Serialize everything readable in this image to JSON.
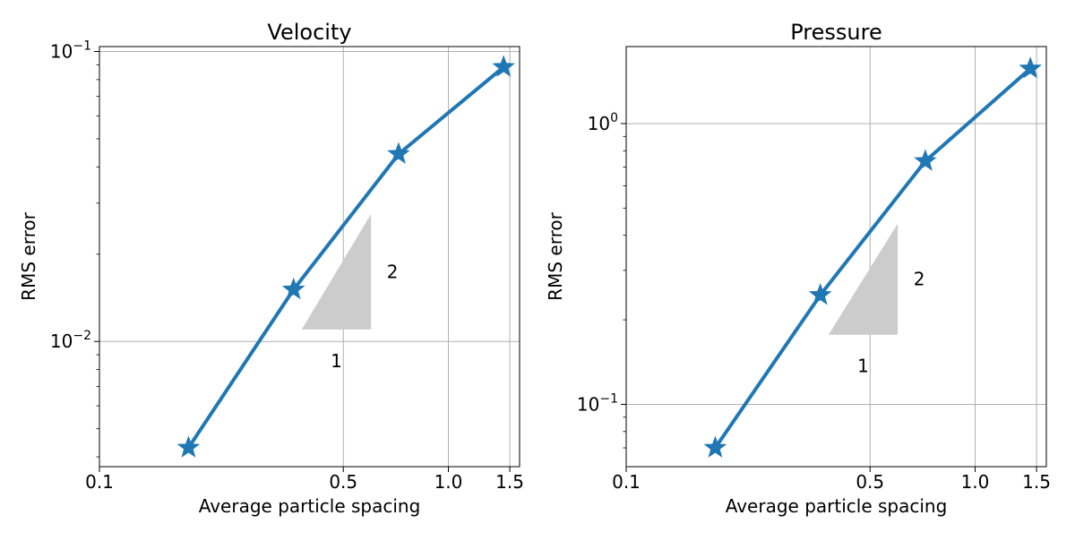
{
  "figure": {
    "background": "#ffffff"
  },
  "chart_data": [
    {
      "type": "line",
      "title": "Velocity",
      "xlabel": "Average particle spacing",
      "ylabel": "RMS error",
      "xscale": "log",
      "yscale": "log",
      "xlim": [
        0.1,
        1.6
      ],
      "ylim": [
        0.0037,
        0.104
      ],
      "grid": true,
      "line_color": "#1f77b4",
      "marker": "star",
      "x_ticks": [
        {
          "value": 0.1,
          "label": "0.1"
        },
        {
          "value": 0.5,
          "label": "0.5"
        },
        {
          "value": 1.0,
          "label": "1.0"
        },
        {
          "value": 1.5,
          "label": "1.5"
        }
      ],
      "y_ticks": [
        {
          "value": 0.01,
          "base": "10",
          "exp": "−2"
        },
        {
          "value": 0.1,
          "base": "10",
          "exp": "−1"
        }
      ],
      "series": [
        {
          "name": "RMS error",
          "x": [
            0.18,
            0.36,
            0.72,
            1.44
          ],
          "y": [
            0.0043,
            0.0151,
            0.0443,
            0.0884
          ]
        }
      ],
      "slope_triangle": {
        "x_range": [
          0.38,
          0.6
        ],
        "y_range": [
          0.011,
          0.0275
        ],
        "color": "#cccccc",
        "horizontal_label": "1",
        "vertical_label": "2"
      }
    },
    {
      "type": "line",
      "title": "Pressure",
      "xlabel": "Average particle spacing",
      "ylabel": "RMS error",
      "xscale": "log",
      "yscale": "log",
      "xlim": [
        0.1,
        1.6
      ],
      "ylim": [
        0.06,
        1.88
      ],
      "grid": true,
      "line_color": "#1f77b4",
      "marker": "star",
      "x_ticks": [
        {
          "value": 0.1,
          "label": "0.1"
        },
        {
          "value": 0.5,
          "label": "0.5"
        },
        {
          "value": 1.0,
          "label": "1.0"
        },
        {
          "value": 1.5,
          "label": "1.5"
        }
      ],
      "y_ticks": [
        {
          "value": 0.1,
          "base": "10",
          "exp": "−1"
        },
        {
          "value": 1.0,
          "base": "10",
          "exp": "0"
        }
      ],
      "series": [
        {
          "name": "RMS error",
          "x": [
            0.18,
            0.36,
            0.72,
            1.44
          ],
          "y": [
            0.07,
            0.245,
            0.735,
            1.57
          ]
        }
      ],
      "slope_triangle": {
        "x_range": [
          0.38,
          0.6
        ],
        "y_range": [
          0.177,
          0.44
        ],
        "color": "#cccccc",
        "horizontal_label": "1",
        "vertical_label": "2"
      }
    }
  ]
}
